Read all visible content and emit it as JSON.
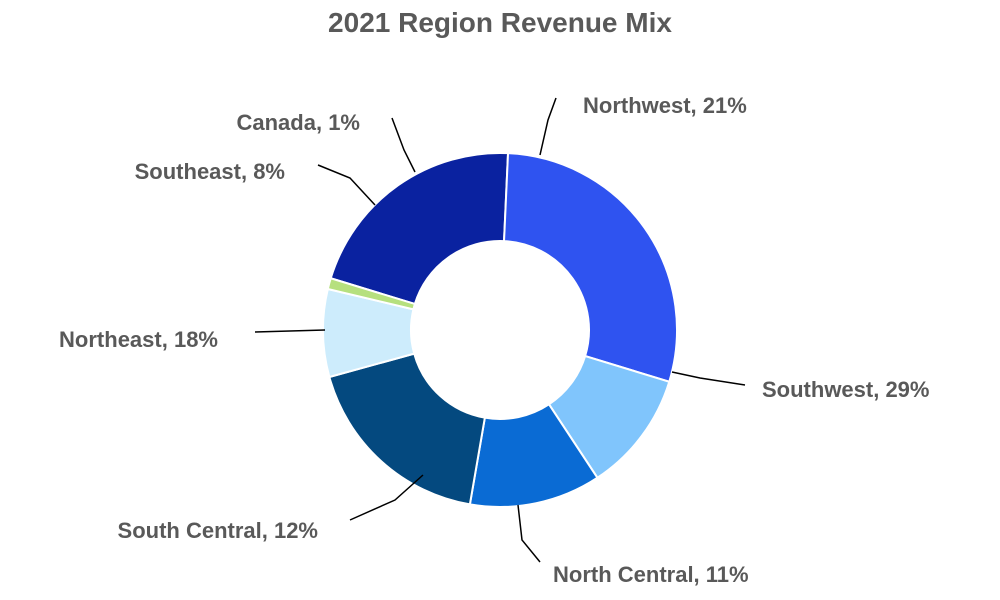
{
  "chart_data": {
    "type": "pie",
    "donut": true,
    "title": "2021 Region Revenue Mix",
    "slices": [
      {
        "label": "Northwest",
        "value": 21,
        "text": "Northwest, 21%",
        "color": "#0a22a0"
      },
      {
        "label": "Southwest",
        "value": 29,
        "text": "Southwest, 29%",
        "color": "#2f53f0"
      },
      {
        "label": "North Central",
        "value": 11,
        "text": "North Central, 11%",
        "color": "#80c5fc"
      },
      {
        "label": "South Central",
        "value": 12,
        "text": "South Central, 12%",
        "color": "#0a6bd4"
      },
      {
        "label": "Northeast",
        "value": 18,
        "text": "Northeast, 18%",
        "color": "#04497f"
      },
      {
        "label": "Southeast",
        "value": 8,
        "text": "Southeast, 8%",
        "color": "#cdecfc"
      },
      {
        "label": "Canada",
        "value": 1,
        "text": "Canada, 1%",
        "color": "#b6e07e"
      }
    ],
    "legend": "none",
    "data_labels": "outside-with-leader-lines"
  }
}
